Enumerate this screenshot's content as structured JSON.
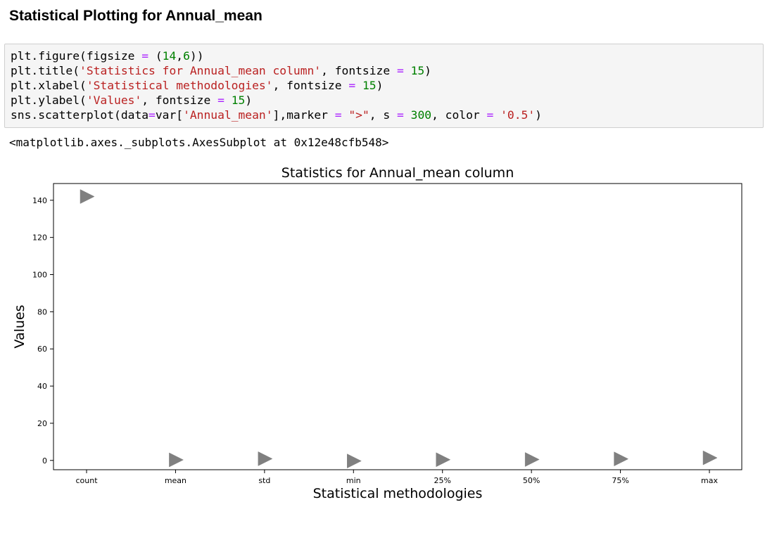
{
  "heading": "Statistical Plotting for Annual_mean",
  "code_lines": [
    [
      [
        "plt.figure(figsize ",
        ""
      ],
      [
        "=",
        "op"
      ],
      [
        " (",
        ""
      ],
      [
        "14",
        "num"
      ],
      [
        ",",
        ""
      ],
      [
        "6",
        "num"
      ],
      [
        "))",
        ""
      ]
    ],
    [
      [
        "plt.title(",
        ""
      ],
      [
        "'Statistics for Annual_mean column'",
        "str"
      ],
      [
        ", fontsize ",
        ""
      ],
      [
        "=",
        "op"
      ],
      [
        " ",
        ""
      ],
      [
        "15",
        "num"
      ],
      [
        ")",
        ""
      ]
    ],
    [
      [
        "plt.xlabel(",
        ""
      ],
      [
        "'Statistical methodologies'",
        "str"
      ],
      [
        ", fontsize ",
        ""
      ],
      [
        "=",
        "op"
      ],
      [
        " ",
        ""
      ],
      [
        "15",
        "num"
      ],
      [
        ")",
        ""
      ]
    ],
    [
      [
        "plt.ylabel(",
        ""
      ],
      [
        "'Values'",
        "str"
      ],
      [
        ", fontsize ",
        ""
      ],
      [
        "=",
        "op"
      ],
      [
        " ",
        ""
      ],
      [
        "15",
        "num"
      ],
      [
        ")",
        ""
      ]
    ],
    [
      [
        "sns.scatterplot(data",
        ""
      ],
      [
        "=",
        "op"
      ],
      [
        "var[",
        ""
      ],
      [
        "'Annual_mean'",
        "str"
      ],
      [
        "],marker ",
        ""
      ],
      [
        "=",
        "op"
      ],
      [
        " ",
        ""
      ],
      [
        "\">\"",
        "str"
      ],
      [
        ", s ",
        ""
      ],
      [
        "=",
        "op"
      ],
      [
        " ",
        ""
      ],
      [
        "300",
        "num"
      ],
      [
        ", color ",
        ""
      ],
      [
        "=",
        "op"
      ],
      [
        " ",
        ""
      ],
      [
        "'0.5'",
        "str"
      ],
      [
        ")",
        ""
      ]
    ]
  ],
  "output_text": "<matplotlib.axes._subplots.AxesSubplot at 0x12e48cfb548>",
  "colors": {
    "marker": "#808080",
    "string": "#ba2121",
    "number": "#008000",
    "operator": "#aa22ff",
    "cell_bg": "#f5f5f5"
  },
  "chart_data": {
    "type": "scatter",
    "title": "Statistics for Annual_mean column",
    "xlabel": "Statistical methodologies",
    "ylabel": "Values",
    "categories": [
      "count",
      "mean",
      "std",
      "min",
      "25%",
      "50%",
      "75%",
      "max"
    ],
    "values": [
      142,
      0.3,
      0.9,
      -0.3,
      0.4,
      0.5,
      0.8,
      1.4
    ],
    "yticks": [
      0,
      20,
      40,
      60,
      80,
      100,
      120,
      140
    ],
    "ylim": [
      -5,
      149
    ],
    "marker": ">",
    "grid": false
  }
}
